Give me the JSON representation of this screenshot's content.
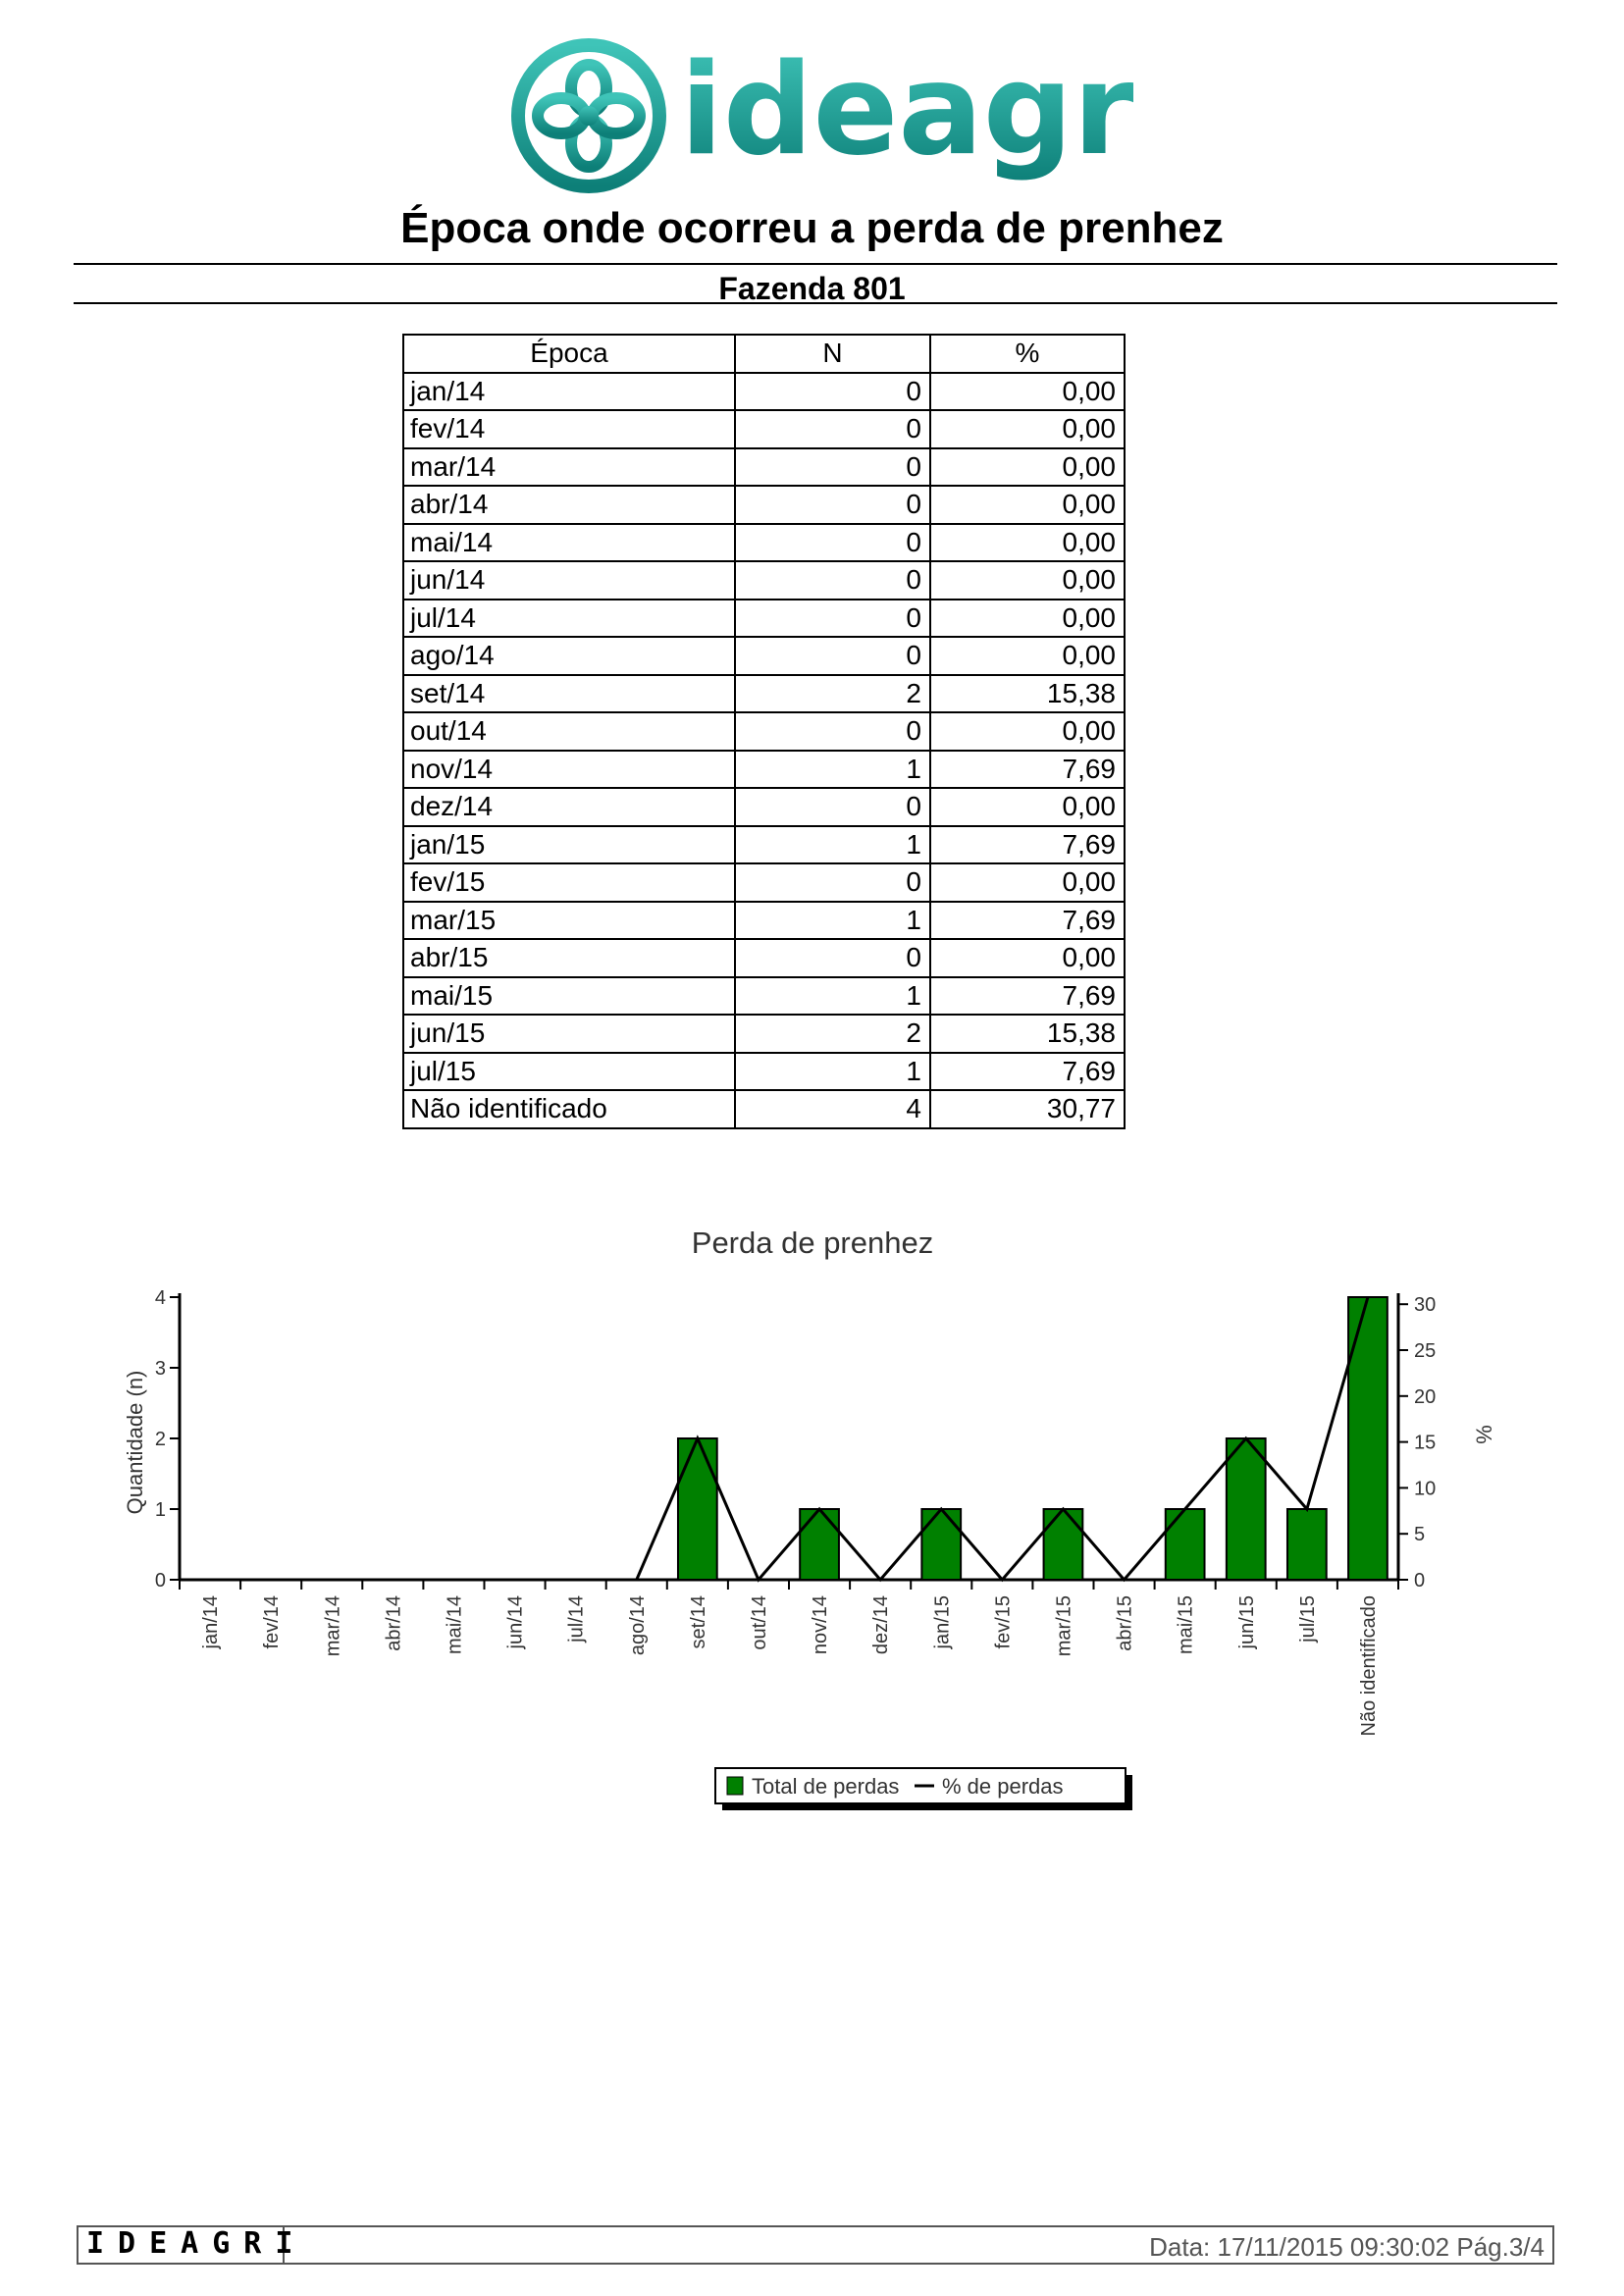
{
  "header": {
    "logo_text": "ideagri",
    "title": "Época onde ocorreu a perda de prenhez",
    "subtitle": "Fazenda 801"
  },
  "table": {
    "columns": [
      "Época",
      "N",
      "%"
    ],
    "rows": [
      {
        "epoca": "jan/14",
        "n": "0",
        "pct": "0,00"
      },
      {
        "epoca": "fev/14",
        "n": "0",
        "pct": "0,00"
      },
      {
        "epoca": "mar/14",
        "n": "0",
        "pct": "0,00"
      },
      {
        "epoca": "abr/14",
        "n": "0",
        "pct": "0,00"
      },
      {
        "epoca": "mai/14",
        "n": "0",
        "pct": "0,00"
      },
      {
        "epoca": "jun/14",
        "n": "0",
        "pct": "0,00"
      },
      {
        "epoca": "jul/14",
        "n": "0",
        "pct": "0,00"
      },
      {
        "epoca": "ago/14",
        "n": "0",
        "pct": "0,00"
      },
      {
        "epoca": "set/14",
        "n": "2",
        "pct": "15,38"
      },
      {
        "epoca": "out/14",
        "n": "0",
        "pct": "0,00"
      },
      {
        "epoca": "nov/14",
        "n": "1",
        "pct": "7,69"
      },
      {
        "epoca": "dez/14",
        "n": "0",
        "pct": "0,00"
      },
      {
        "epoca": "jan/15",
        "n": "1",
        "pct": "7,69"
      },
      {
        "epoca": "fev/15",
        "n": "0",
        "pct": "0,00"
      },
      {
        "epoca": "mar/15",
        "n": "1",
        "pct": "7,69"
      },
      {
        "epoca": "abr/15",
        "n": "0",
        "pct": "0,00"
      },
      {
        "epoca": "mai/15",
        "n": "1",
        "pct": "7,69"
      },
      {
        "epoca": "jun/15",
        "n": "2",
        "pct": "15,38"
      },
      {
        "epoca": "jul/15",
        "n": "1",
        "pct": "7,69"
      },
      {
        "epoca": "Não identificado",
        "n": "4",
        "pct": "30,77"
      }
    ]
  },
  "chart_data": {
    "type": "bar",
    "title": "Perda de prenhez",
    "ylabel": "Quantidade (n)",
    "y2label": "%",
    "categories": [
      "jan/14",
      "fev/14",
      "mar/14",
      "abr/14",
      "mai/14",
      "jun/14",
      "jul/14",
      "ago/14",
      "set/14",
      "out/14",
      "nov/14",
      "dez/14",
      "jan/15",
      "fev/15",
      "mar/15",
      "abr/15",
      "mai/15",
      "jun/15",
      "jul/15",
      "Não identificado"
    ],
    "series": [
      {
        "name": "Total de perdas",
        "kind": "bar",
        "axis": "left",
        "color": "#008000",
        "values": [
          0,
          0,
          0,
          0,
          0,
          0,
          0,
          0,
          2,
          0,
          1,
          0,
          1,
          0,
          1,
          0,
          1,
          2,
          1,
          4
        ]
      },
      {
        "name": "% de perdas",
        "kind": "line",
        "axis": "right",
        "color": "#000000",
        "values": [
          0,
          0,
          0,
          0,
          0,
          0,
          0,
          0,
          15.38,
          0,
          7.69,
          0,
          7.69,
          0,
          7.69,
          0,
          7.69,
          15.38,
          7.69,
          30.77
        ]
      }
    ],
    "ylim": [
      0,
      4
    ],
    "yticks": [
      "0",
      "1",
      "2",
      "3",
      "4"
    ],
    "y2lim": [
      0,
      30.77
    ],
    "y2ticks": [
      "0",
      "5",
      "10",
      "15",
      "20",
      "25",
      "30"
    ],
    "legend": "bottom-center",
    "grid": false
  },
  "footer": {
    "brand": "IDEAGRI",
    "date": "Data: 17/11/2015 09:30:02 Pág.3/4"
  },
  "colors": {
    "logo_teal": "#1a9a90",
    "bar_green": "#008000"
  }
}
